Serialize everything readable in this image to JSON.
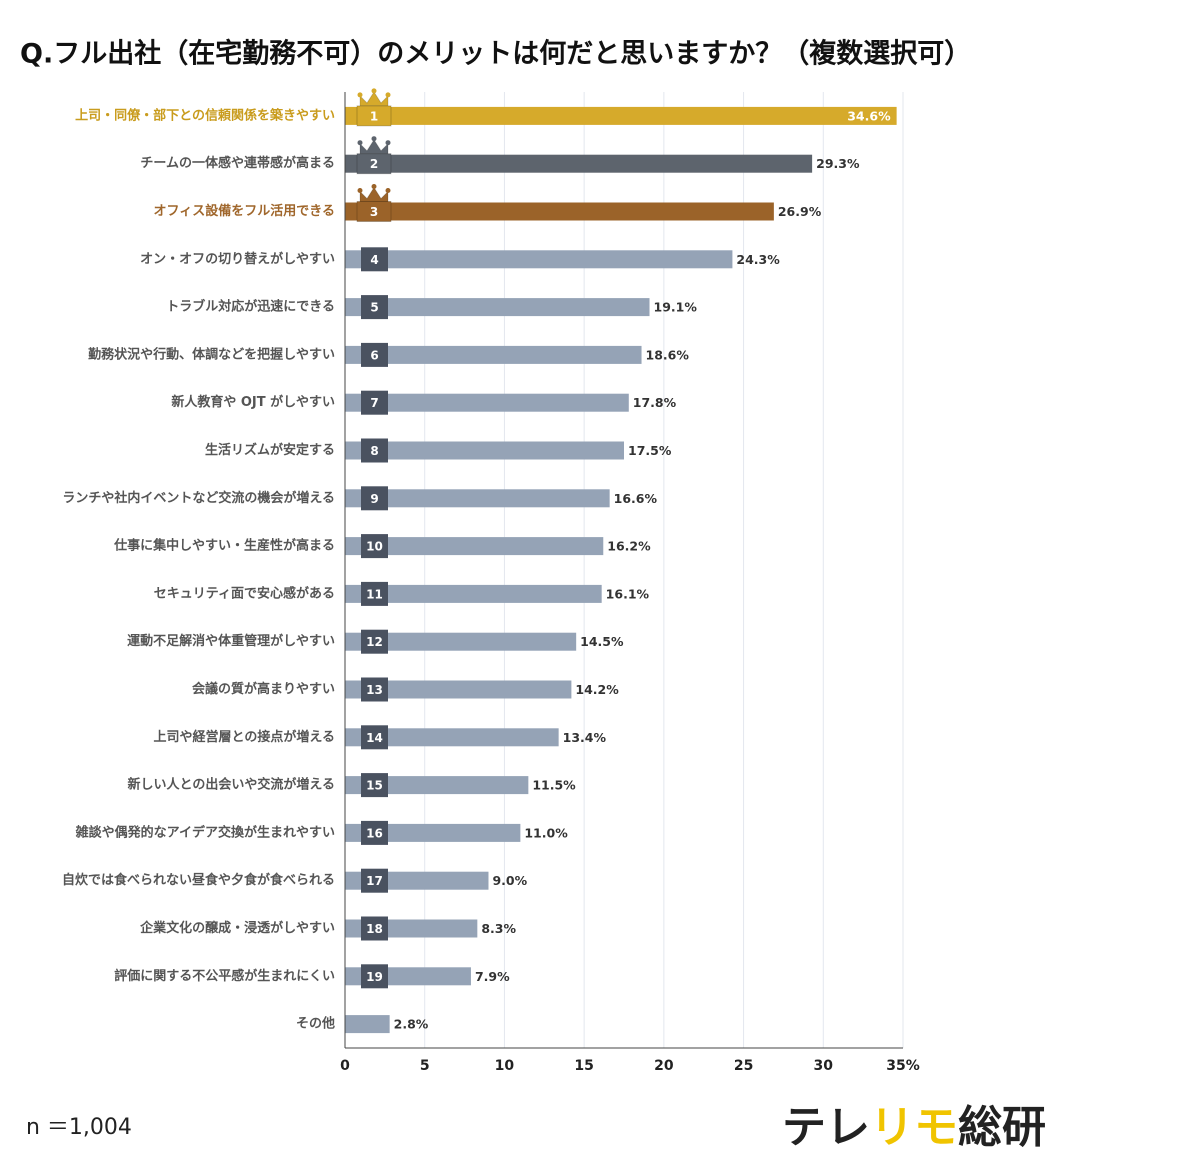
{
  "chart_data": {
    "type": "hbar",
    "title": "Q.フル出社（在宅勤務不可）のメリットは何だと思いますか？（複数選択可）",
    "categories": [
      "上司・同僚・部下との信頼関係を築きやすい",
      "チームの一体感や連帯感が高まる",
      "オフィス設備をフル活用できる",
      "オン・オフの切り替えがしやすい",
      "トラブル対応が迅速にできる",
      "勤務状況や行動、体調などを把握しやすい",
      "新人教育や OJT がしやすい",
      "生活リズムが安定する",
      "ランチや社内イベントなど交流の機会が増える",
      "仕事に集中しやすい・生産性が高まる",
      "セキュリティ面で安心感がある",
      "運動不足解消や体重管理がしやすい",
      "会議の質が高まりやすい",
      "上司や経営層との接点が増える",
      "新しい人との出会いや交流が増える",
      "雑談や偶発的なアイデア交換が生まれやすい",
      "自炊では食べられない昼食や夕食が食べられる",
      "企業文化の醸成・浸透がしやすい",
      "評価に関する不公平感が生まれにくい",
      "その他"
    ],
    "values": [
      34.6,
      29.3,
      26.9,
      24.3,
      19.1,
      18.6,
      17.8,
      17.5,
      16.6,
      16.2,
      16.1,
      14.5,
      14.2,
      13.4,
      11.5,
      11.0,
      9.0,
      8.3,
      7.9,
      2.8
    ],
    "value_labels": [
      "34.6%",
      "29.3%",
      "26.9%",
      "24.3%",
      "19.1%",
      "18.6%",
      "17.8%",
      "17.5%",
      "16.6%",
      "16.2%",
      "16.1%",
      "14.5%",
      "14.2%",
      "13.4%",
      "11.5%",
      "11.0%",
      "9.0%",
      "8.3%",
      "7.9%",
      "2.8%"
    ],
    "ranks": [
      1,
      2,
      3,
      4,
      5,
      6,
      7,
      8,
      9,
      10,
      11,
      12,
      13,
      14,
      15,
      16,
      17,
      18,
      19,
      null
    ],
    "colors": [
      "#d6aa2b",
      "#5d646d",
      "#9b6329",
      "#95a3b6",
      "#95a3b6",
      "#95a3b6",
      "#95a3b6",
      "#95a3b6",
      "#95a3b6",
      "#95a3b6",
      "#95a3b6",
      "#95a3b6",
      "#95a3b6",
      "#95a3b6",
      "#95a3b6",
      "#95a3b6",
      "#95a3b6",
      "#95a3b6",
      "#95a3b6",
      "#95a3b6"
    ],
    "label_colors": [
      "#c99c1e",
      "#555555",
      "#a0672c",
      "#555555",
      "#555555",
      "#555555",
      "#555555",
      "#555555",
      "#555555",
      "#555555",
      "#555555",
      "#555555",
      "#555555",
      "#555555",
      "#555555",
      "#555555",
      "#555555",
      "#555555",
      "#555555",
      "#555555"
    ],
    "xlim": [
      0,
      35
    ],
    "xticks": [
      0,
      5,
      10,
      15,
      20,
      25,
      30,
      {
        "value": 35,
        "label": "35%"
      }
    ],
    "grid": true,
    "note": "n ＝1,004",
    "brand_parts": [
      "テレ",
      "リモ",
      "総研"
    ]
  }
}
